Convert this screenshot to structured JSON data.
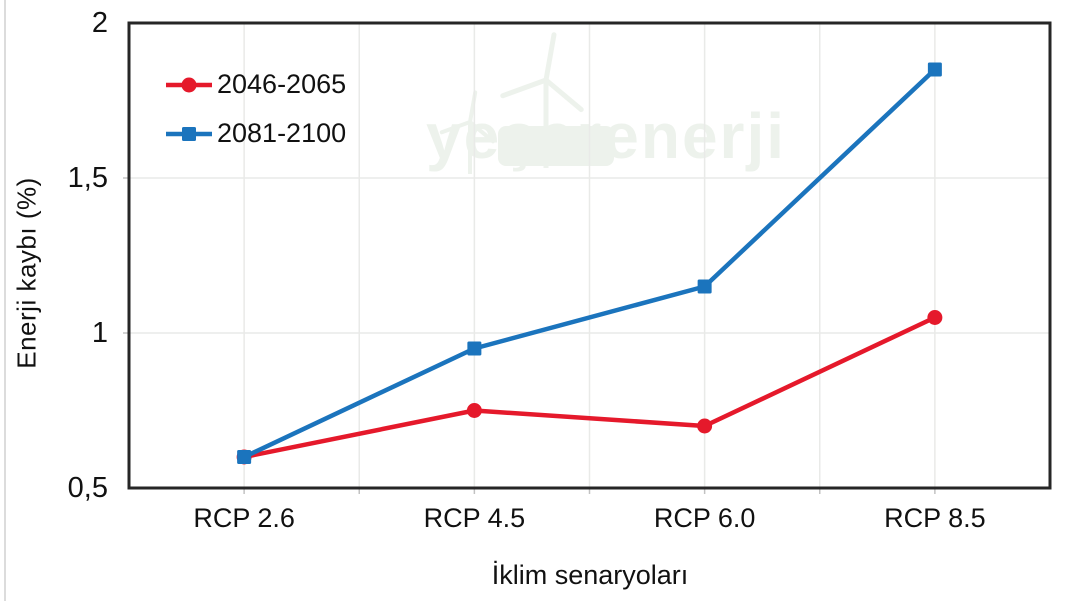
{
  "chart_data": {
    "type": "line",
    "title": "",
    "categories": [
      "RCP 2.6",
      "RCP 4.5",
      "RCP 6.0",
      "RCP 8.5"
    ],
    "series": [
      {
        "name": "2046-2065",
        "color": "#e5192b",
        "marker": "circle",
        "values": [
          0.6,
          0.75,
          0.7,
          1.05
        ]
      },
      {
        "name": "2081-2100",
        "color": "#1b74bd",
        "marker": "square",
        "values": [
          0.6,
          0.95,
          1.15,
          1.85
        ]
      }
    ],
    "xlabel": "İklim senaryoları",
    "ylabel": "Enerji kaybı (%)",
    "ylim": [
      0.5,
      2
    ],
    "ytick_values": [
      0.5,
      1,
      1.5,
      2
    ],
    "ytick_labels": [
      "0,5",
      "1",
      "1,5",
      "2"
    ],
    "grid": true,
    "legend_position": "inside-top-left",
    "watermark_text": "yeşerenerji"
  },
  "colors": {
    "frame": "#262626",
    "gridline": "#e9eae8",
    "tick": "#c2c2c2",
    "watermark": "#edf2ec",
    "text": "#111111"
  }
}
